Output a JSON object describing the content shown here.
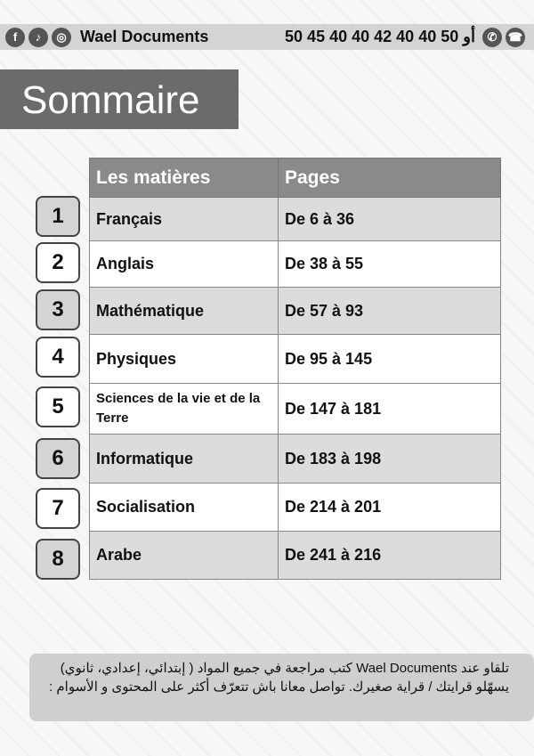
{
  "header": {
    "brand": "Wael Documents",
    "phone": "50 45 40 40 أو 50 40 40 42",
    "icons": [
      "facebook-icon",
      "tiktok-icon",
      "instagram-icon",
      "whatsapp-icon",
      "phone-icon"
    ]
  },
  "title": "Sommaire",
  "table": {
    "headers": [
      "Les matières",
      "Pages"
    ],
    "rows": [
      {
        "num": "1",
        "subject": "Français",
        "pages": "De 6 à 36",
        "shade": "g"
      },
      {
        "num": "2",
        "subject": "Anglais",
        "pages": "De 38 à 55",
        "shade": "w"
      },
      {
        "num": "3",
        "subject": "Mathématique",
        "pages": "De 57 à 93",
        "shade": "g"
      },
      {
        "num": "4",
        "subject": "Physiques",
        "pages": "De 95 à 145",
        "shade": "w"
      },
      {
        "num": "5",
        "subject": "Sciences de la vie et de la Terre",
        "pages": "De 147 à 181",
        "shade": "w"
      },
      {
        "num": "6",
        "subject": "Informatique",
        "pages": "De 183 à 198",
        "shade": "g"
      },
      {
        "num": "7",
        "subject": "Socialisation",
        "pages": "De 214 à 201",
        "shade": "w"
      },
      {
        "num": "8",
        "subject": "Arabe",
        "pages": "De 241 à 216",
        "shade": "g"
      }
    ]
  },
  "note": "تلقاو عند Wael Documents كتب مراجعة في جميع المواد ( إبتدائي، إعدادي، ثانوي) يسهّلو قرايتك / قراية صغيرك. تواصل معانا باش تتعرّف أكثر على المحتوى و الأسوام :"
}
